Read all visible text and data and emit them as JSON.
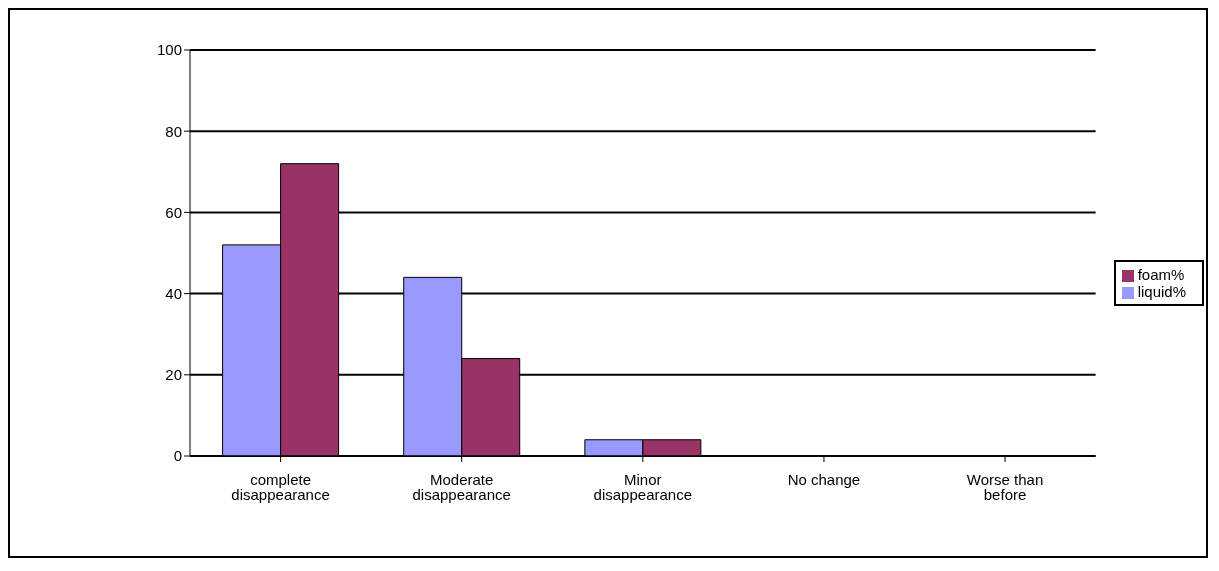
{
  "chart_data": {
    "type": "bar",
    "categories": [
      "complete disappearance",
      "Moderate disappearance",
      "Minor disappearance",
      "No change",
      "Worse than before"
    ],
    "series": [
      {
        "name": "liquid%",
        "color": "#9999ff",
        "values": [
          52,
          44,
          4,
          0,
          0
        ]
      },
      {
        "name": "foam%",
        "color": "#993366",
        "values": [
          72,
          24,
          4,
          0,
          0
        ]
      }
    ],
    "ylim": [
      0,
      100
    ],
    "yticks": [
      0,
      20,
      40,
      60,
      80,
      100
    ],
    "grid": "y",
    "legend": "right"
  }
}
